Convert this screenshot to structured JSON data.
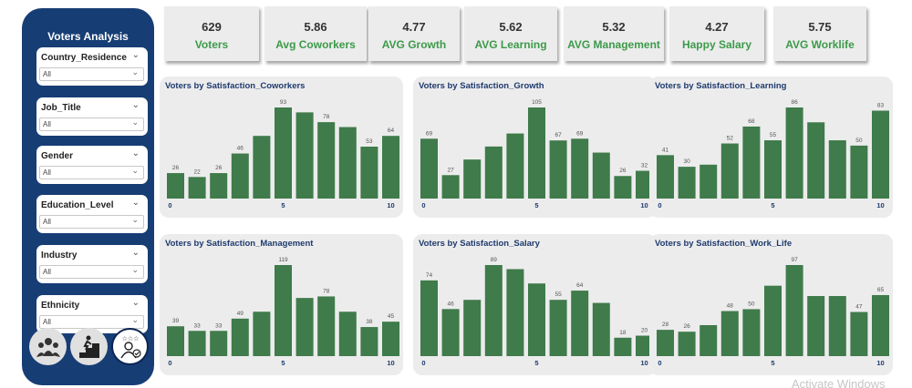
{
  "sidebar": {
    "title": "Voters Analysis",
    "slicers": [
      {
        "label": "Country_Residence",
        "value": "All"
      },
      {
        "label": "Job_Title",
        "value": "All"
      },
      {
        "label": "Gender",
        "value": "All"
      },
      {
        "label": "Education_Level",
        "value": "All"
      },
      {
        "label": "Industry",
        "value": "All"
      },
      {
        "label": "Ethnicity",
        "value": "All"
      }
    ],
    "nav_icons": [
      "team-icon",
      "career-steps-icon",
      "satisfaction-rating-icon"
    ]
  },
  "kpis": [
    {
      "value": "629",
      "label": "Voters"
    },
    {
      "value": "5.86",
      "label": "Avg Coworkers"
    },
    {
      "value": "4.77",
      "label": "AVG Growth"
    },
    {
      "value": "5.62",
      "label": "AVG Learning"
    },
    {
      "value": "5.32",
      "label": "AVG Management"
    },
    {
      "value": "4.27",
      "label": "Happy Salary"
    },
    {
      "value": "5.75",
      "label": "AVG Worklife"
    }
  ],
  "colors": {
    "sidebar": "#173d75",
    "bar": "#3f7b4b",
    "kpi_label": "#3c9a49",
    "title": "#1e3a6e"
  },
  "watermark": "Activate Windows",
  "chart_data": [
    {
      "type": "bar",
      "title": "Voters by Satisfaction_Coworkers",
      "categories": [
        0,
        1,
        2,
        3,
        4,
        5,
        6,
        7,
        8,
        9,
        10
      ],
      "values": [
        26,
        22,
        26,
        46,
        64,
        93,
        88,
        78,
        73,
        53,
        64
      ],
      "labeled": [
        true,
        true,
        true,
        true,
        false,
        true,
        false,
        true,
        false,
        true,
        true
      ],
      "xticks": [
        "0",
        "5",
        "10"
      ]
    },
    {
      "type": "bar",
      "title": "Voters by Satisfaction_Growth",
      "categories": [
        0,
        1,
        2,
        3,
        4,
        5,
        6,
        7,
        8,
        9,
        10
      ],
      "values": [
        69,
        27,
        45,
        60,
        75,
        105,
        67,
        69,
        53,
        26,
        32
      ],
      "labeled": [
        true,
        true,
        false,
        false,
        false,
        true,
        true,
        true,
        false,
        true,
        true
      ],
      "xticks": [
        "0",
        "5",
        "10"
      ]
    },
    {
      "type": "bar",
      "title": "Voters by Satisfaction_Learning",
      "categories": [
        0,
        1,
        2,
        3,
        4,
        5,
        6,
        7,
        8,
        9,
        10
      ],
      "values": [
        41,
        30,
        32,
        52,
        68,
        55,
        86,
        72,
        55,
        50,
        83
      ],
      "labeled": [
        true,
        true,
        false,
        true,
        true,
        true,
        true,
        false,
        false,
        true,
        true
      ],
      "xticks": [
        "0",
        "5",
        "10"
      ]
    },
    {
      "type": "bar",
      "title": "Voters by Satisfaction_Management",
      "categories": [
        0,
        1,
        2,
        3,
        4,
        5,
        6,
        7,
        8,
        9,
        10
      ],
      "values": [
        39,
        33,
        33,
        49,
        58,
        119,
        76,
        78,
        58,
        38,
        45
      ],
      "labeled": [
        true,
        true,
        true,
        true,
        false,
        true,
        false,
        true,
        false,
        true,
        true
      ],
      "xticks": [
        "0",
        "5",
        "10"
      ]
    },
    {
      "type": "bar",
      "title": "Voters by Satisfaction_Salary",
      "categories": [
        0,
        1,
        2,
        3,
        4,
        5,
        6,
        7,
        8,
        9,
        10
      ],
      "values": [
        74,
        46,
        55,
        89,
        85,
        71,
        55,
        64,
        52,
        18,
        20
      ],
      "labeled": [
        true,
        true,
        false,
        true,
        false,
        false,
        true,
        true,
        false,
        true,
        true
      ],
      "xticks": [
        "0",
        "5",
        "10"
      ]
    },
    {
      "type": "bar",
      "title": "Voters by Satisfaction_Work_Life",
      "categories": [
        0,
        1,
        2,
        3,
        4,
        5,
        6,
        7,
        8,
        9,
        10
      ],
      "values": [
        28,
        26,
        33,
        48,
        50,
        75,
        97,
        64,
        64,
        47,
        65
      ],
      "labeled": [
        true,
        true,
        false,
        true,
        true,
        false,
        true,
        false,
        false,
        true,
        true
      ],
      "xticks": [
        "0",
        "5",
        "10"
      ]
    }
  ]
}
